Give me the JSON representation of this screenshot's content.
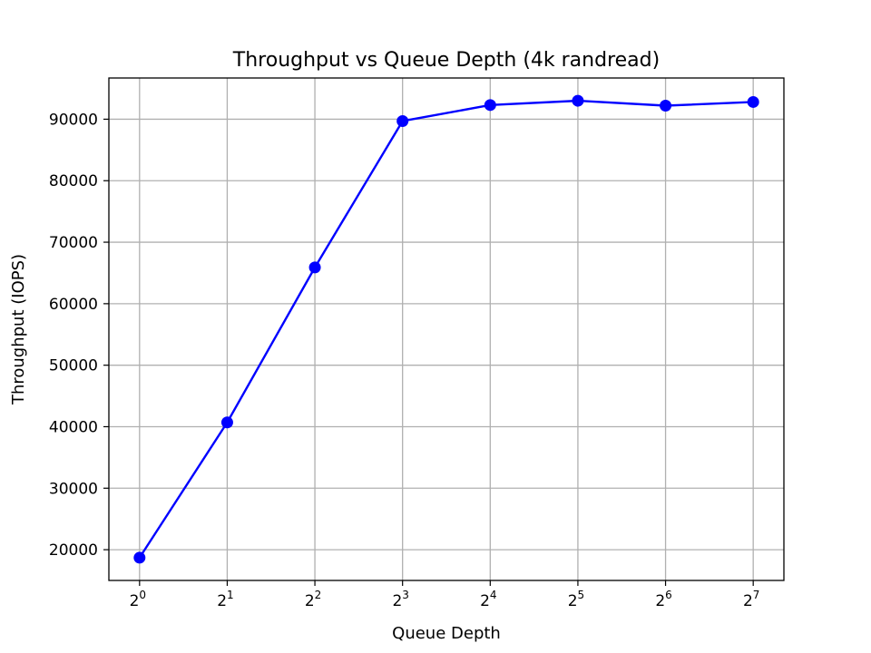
{
  "chart_data": {
    "type": "line",
    "title": "Throughput vs Queue Depth (4k randread)",
    "xlabel": "Queue Depth",
    "ylabel": "Throughput (IOPS)",
    "x_scale": "log2",
    "x": [
      1,
      2,
      4,
      8,
      16,
      32,
      64,
      128
    ],
    "x_tick_labels": [
      {
        "base": "2",
        "exp": "0"
      },
      {
        "base": "2",
        "exp": "1"
      },
      {
        "base": "2",
        "exp": "2"
      },
      {
        "base": "2",
        "exp": "3"
      },
      {
        "base": "2",
        "exp": "4"
      },
      {
        "base": "2",
        "exp": "5"
      },
      {
        "base": "2",
        "exp": "6"
      },
      {
        "base": "2",
        "exp": "7"
      }
    ],
    "y_ticks": [
      20000,
      30000,
      40000,
      50000,
      60000,
      70000,
      80000,
      90000
    ],
    "ylim": [
      15000,
      96700
    ],
    "grid": true,
    "series": [
      {
        "color": "#0000ff",
        "marker": "circle",
        "values": [
          18700,
          40700,
          65900,
          89700,
          92300,
          93000,
          92200,
          92800
        ]
      }
    ]
  }
}
